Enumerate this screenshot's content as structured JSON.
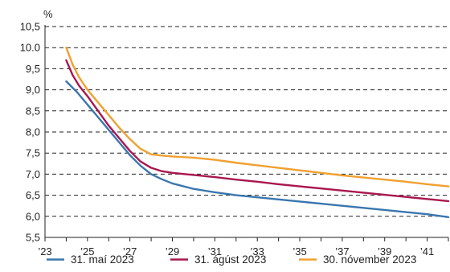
{
  "chart_data": {
    "type": "line",
    "unit": "%",
    "ylim": [
      5.5,
      10.5
    ],
    "yticks": [
      "5,5",
      "6,0",
      "6,5",
      "7,0",
      "7,5",
      "8,0",
      "8,5",
      "9,0",
      "9,5",
      "10.0",
      "10,5"
    ],
    "ytick_values": [
      5.5,
      6.0,
      6.5,
      7.0,
      7.5,
      8.0,
      8.5,
      9.0,
      9.5,
      10.0,
      10.5
    ],
    "xlim": [
      2023,
      2042
    ],
    "xticks": [
      "’23",
      "’25",
      "’27",
      "’29",
      "’31",
      "’33",
      "’35",
      "’37",
      "’39",
      "’41"
    ],
    "xtick_values": [
      2023,
      2025,
      2027,
      2029,
      2031,
      2033,
      2035,
      2037,
      2039,
      2041
    ],
    "grid": "horizontal dashed",
    "legend_position": "bottom",
    "series": [
      {
        "name": "31. maí 2023",
        "color": "#3a76ae",
        "x": [
          2024.0,
          2024.5,
          2025.0,
          2025.5,
          2026.0,
          2026.5,
          2027.0,
          2027.5,
          2028.0,
          2028.5,
          2029.0,
          2030.0,
          2031.0,
          2032.0,
          2033.0,
          2034.0,
          2035.0,
          2036.0,
          2037.0,
          2038.0,
          2039.0,
          2040.0,
          2041.0,
          2042.0
        ],
        "y": [
          9.2,
          8.95,
          8.65,
          8.35,
          8.05,
          7.75,
          7.45,
          7.2,
          7.0,
          6.88,
          6.78,
          6.65,
          6.57,
          6.5,
          6.45,
          6.4,
          6.35,
          6.3,
          6.25,
          6.2,
          6.15,
          6.1,
          6.05,
          5.98
        ]
      },
      {
        "name": "31. ágúst 2023",
        "color": "#a8174f",
        "x": [
          2024.0,
          2024.3,
          2024.6,
          2025.0,
          2025.5,
          2026.0,
          2026.5,
          2027.0,
          2027.5,
          2028.0,
          2028.5,
          2029.0,
          2030.0,
          2031.0,
          2032.0,
          2033.0,
          2034.0,
          2035.0,
          2036.0,
          2037.0,
          2038.0,
          2039.0,
          2040.0,
          2041.0,
          2042.0
        ],
        "y": [
          9.7,
          9.35,
          9.1,
          8.85,
          8.5,
          8.15,
          7.85,
          7.55,
          7.3,
          7.15,
          7.07,
          7.03,
          6.98,
          6.93,
          6.87,
          6.82,
          6.76,
          6.71,
          6.66,
          6.61,
          6.56,
          6.51,
          6.46,
          6.41,
          6.36
        ]
      },
      {
        "name": "30. nóvember 2023",
        "color": "#f0a030",
        "x": [
          2024.0,
          2024.3,
          2024.6,
          2025.0,
          2025.5,
          2026.0,
          2026.5,
          2027.0,
          2027.5,
          2028.0,
          2028.5,
          2029.0,
          2030.0,
          2031.0,
          2032.0,
          2033.0,
          2034.0,
          2035.0,
          2036.0,
          2037.0,
          2038.0,
          2039.0,
          2040.0,
          2041.0,
          2042.0
        ],
        "y": [
          10.0,
          9.6,
          9.3,
          9.0,
          8.7,
          8.4,
          8.1,
          7.83,
          7.6,
          7.47,
          7.44,
          7.42,
          7.39,
          7.34,
          7.27,
          7.21,
          7.15,
          7.09,
          7.03,
          6.97,
          6.92,
          6.87,
          6.82,
          6.76,
          6.71
        ]
      }
    ]
  }
}
